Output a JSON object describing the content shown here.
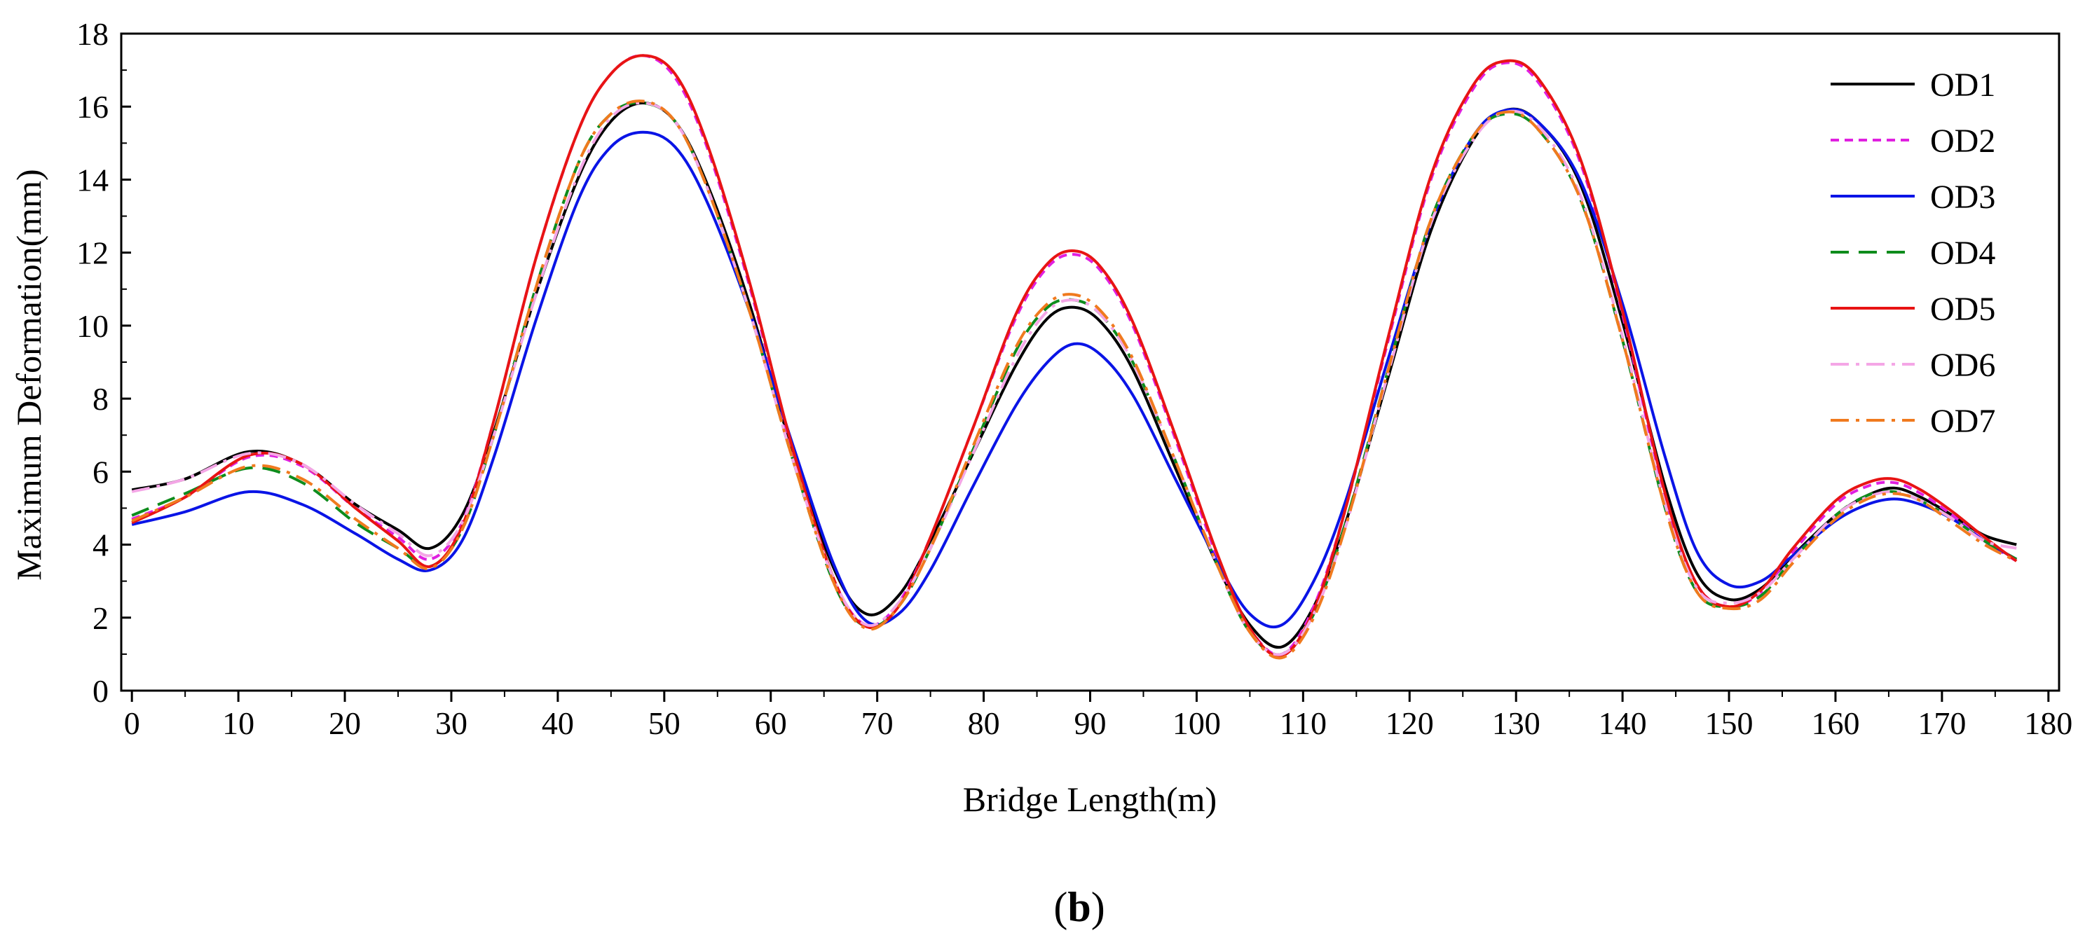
{
  "chart_data": {
    "type": "line",
    "title": "",
    "xlabel": "Bridge Length(m)",
    "ylabel": "Maximum Deformation(mm)",
    "xlim": [
      -1,
      181
    ],
    "ylim": [
      0,
      18
    ],
    "xticks": [
      0,
      10,
      20,
      30,
      40,
      50,
      60,
      70,
      80,
      90,
      100,
      110,
      120,
      130,
      140,
      150,
      160,
      170,
      180
    ],
    "yticks": [
      0,
      2,
      4,
      6,
      8,
      10,
      12,
      14,
      16,
      18
    ],
    "grid": false,
    "legend_position": "top-right",
    "caption": {
      "open": "(",
      "letter": "b",
      "close": ")"
    },
    "x": [
      0,
      5,
      11,
      16,
      21,
      25,
      28,
      31,
      34,
      38,
      42,
      45,
      48,
      51,
      54,
      58,
      62,
      66,
      69,
      72,
      75,
      79,
      83,
      86,
      88.5,
      91,
      94,
      98,
      102,
      105,
      108,
      111,
      114,
      118,
      122,
      126,
      129,
      132,
      136,
      140,
      144,
      147,
      150,
      153,
      156,
      160,
      163,
      165.5,
      168,
      171,
      174,
      177
    ],
    "series": [
      {
        "name": "OD1",
        "color": "#000000",
        "dash": "solid",
        "values": [
          5.5,
          5.8,
          6.55,
          6.2,
          5.1,
          4.4,
          3.9,
          4.8,
          7.1,
          10.9,
          14.1,
          15.6,
          16.1,
          15.6,
          13.9,
          10.6,
          6.6,
          3.3,
          2.1,
          2.6,
          4.1,
          6.5,
          8.9,
          10.2,
          10.5,
          10.1,
          8.8,
          6.1,
          3.4,
          1.8,
          1.2,
          2.3,
          4.6,
          8.6,
          12.6,
          15.1,
          15.9,
          15.6,
          13.9,
          10.1,
          5.6,
          3.2,
          2.5,
          2.8,
          3.7,
          4.8,
          5.35,
          5.55,
          5.3,
          4.8,
          4.25,
          4.0
        ]
      },
      {
        "name": "OD2",
        "color": "#e020e0",
        "dash": "short-dash",
        "values": [
          4.7,
          5.3,
          6.4,
          6.15,
          5.0,
          4.2,
          3.6,
          4.6,
          7.4,
          11.9,
          15.4,
          16.9,
          17.4,
          16.8,
          14.9,
          11.1,
          6.6,
          3.0,
          1.8,
          2.4,
          4.2,
          7.2,
          10.2,
          11.6,
          11.95,
          11.5,
          10.0,
          6.9,
          3.6,
          1.7,
          1.0,
          2.3,
          5.0,
          9.6,
          14.0,
          16.5,
          17.2,
          16.7,
          14.5,
          10.3,
          5.3,
          2.9,
          2.3,
          2.7,
          3.8,
          5.1,
          5.6,
          5.7,
          5.4,
          4.8,
          4.1,
          3.55
        ]
      },
      {
        "name": "OD3",
        "color": "#0a14e6",
        "dash": "solid",
        "values": [
          4.55,
          4.9,
          5.45,
          5.1,
          4.3,
          3.6,
          3.3,
          4.1,
          6.4,
          10.2,
          13.5,
          14.9,
          15.3,
          14.9,
          13.4,
          10.4,
          6.8,
          3.4,
          1.9,
          2.1,
          3.3,
          5.6,
          7.8,
          9.0,
          9.5,
          9.2,
          8.1,
          5.8,
          3.5,
          2.1,
          1.8,
          3.0,
          5.2,
          9.1,
          12.8,
          15.2,
          15.9,
          15.6,
          14.0,
          10.6,
          6.4,
          3.8,
          2.9,
          3.0,
          3.7,
          4.65,
          5.1,
          5.25,
          5.1,
          4.7,
          4.1,
          3.6
        ]
      },
      {
        "name": "OD4",
        "color": "#0e8c1c",
        "dash": "dash",
        "values": [
          4.8,
          5.4,
          6.1,
          5.7,
          4.6,
          3.9,
          3.4,
          4.4,
          7.0,
          11.1,
          14.5,
          15.8,
          16.1,
          15.6,
          13.8,
          10.4,
          6.4,
          2.9,
          1.75,
          2.3,
          3.9,
          6.6,
          9.3,
          10.5,
          10.7,
          10.3,
          9.0,
          6.3,
          3.4,
          1.6,
          1.0,
          2.1,
          4.6,
          8.8,
          12.9,
          15.2,
          15.8,
          15.4,
          13.5,
          9.6,
          5.0,
          2.7,
          2.3,
          2.6,
          3.6,
          4.8,
          5.35,
          5.45,
          5.2,
          4.7,
          4.1,
          3.6
        ]
      },
      {
        "name": "OD5",
        "color": "#e81414",
        "dash": "solid",
        "values": [
          4.6,
          5.3,
          6.45,
          6.2,
          5.0,
          4.1,
          3.4,
          4.5,
          7.4,
          11.9,
          15.4,
          16.9,
          17.4,
          16.9,
          15.0,
          11.2,
          6.7,
          3.0,
          1.75,
          2.3,
          4.2,
          7.2,
          10.3,
          11.7,
          12.05,
          11.6,
          10.1,
          7.0,
          3.7,
          1.7,
          0.95,
          2.2,
          5.0,
          9.7,
          14.1,
          16.6,
          17.25,
          16.8,
          14.6,
          10.4,
          5.4,
          2.9,
          2.3,
          2.75,
          3.9,
          5.2,
          5.7,
          5.8,
          5.5,
          4.9,
          4.2,
          3.55
        ]
      },
      {
        "name": "OD6",
        "color": "#f4a6e6",
        "dash": "dash-dot",
        "values": [
          5.45,
          5.8,
          6.5,
          6.2,
          5.1,
          4.3,
          3.7,
          4.6,
          7.0,
          10.9,
          14.2,
          15.7,
          16.1,
          15.6,
          13.8,
          10.4,
          6.4,
          3.0,
          1.8,
          2.4,
          3.9,
          6.5,
          9.1,
          10.4,
          10.7,
          10.3,
          9.0,
          6.3,
          3.4,
          1.6,
          1.0,
          2.1,
          4.5,
          8.7,
          12.8,
          15.1,
          15.85,
          15.5,
          13.6,
          9.7,
          5.1,
          2.8,
          2.4,
          2.7,
          3.6,
          4.8,
          5.3,
          5.45,
          5.2,
          4.7,
          4.1,
          3.9
        ]
      },
      {
        "name": "OD7",
        "color": "#f07a1e",
        "dash": "dash-dot",
        "values": [
          4.65,
          5.3,
          6.15,
          5.8,
          4.7,
          3.9,
          3.35,
          4.4,
          7.0,
          11.1,
          14.5,
          15.8,
          16.15,
          15.6,
          13.8,
          10.4,
          6.4,
          2.9,
          1.7,
          2.3,
          3.9,
          6.7,
          9.4,
          10.6,
          10.85,
          10.4,
          9.1,
          6.3,
          3.4,
          1.6,
          0.9,
          2.0,
          4.5,
          8.8,
          12.9,
          15.2,
          15.85,
          15.4,
          13.5,
          9.6,
          5.0,
          2.7,
          2.25,
          2.5,
          3.5,
          4.7,
          5.25,
          5.4,
          5.2,
          4.6,
          4.0,
          3.55
        ]
      }
    ]
  }
}
